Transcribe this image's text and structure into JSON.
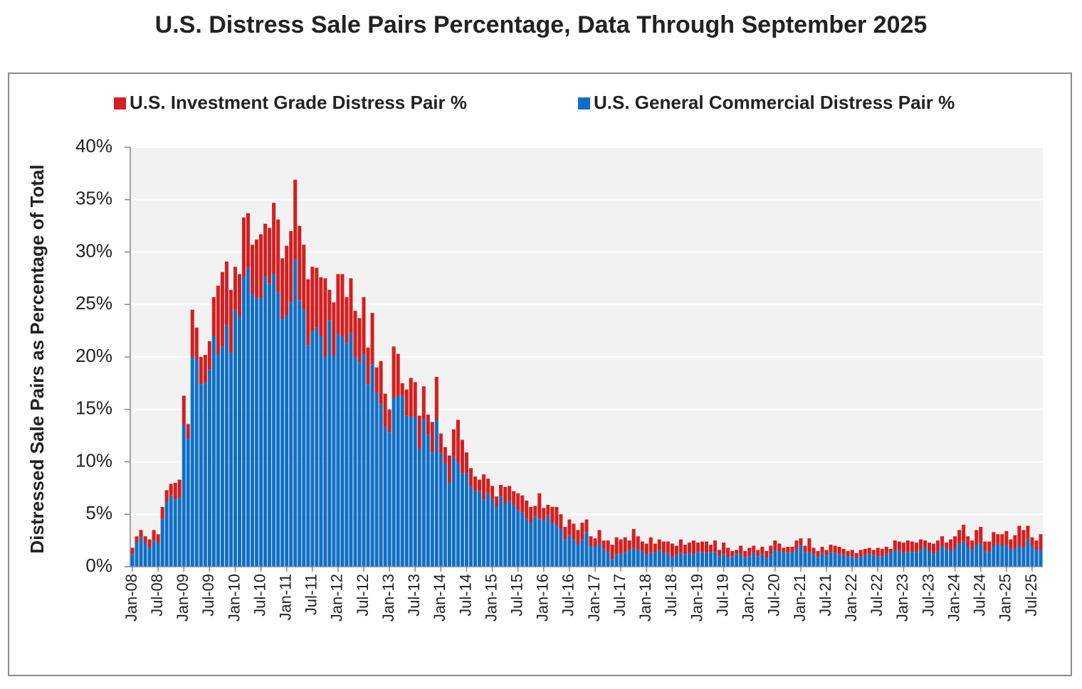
{
  "chart_data": {
    "type": "stacked-bar",
    "title": "U.S. Distress Sale Pairs Percentage, Data Through September 2025",
    "y_label": "Distressed Sale Pairs as Percentage of Total",
    "categories": [
      "Jan-08",
      null,
      null,
      null,
      null,
      null,
      "Jul-08",
      null,
      null,
      null,
      null,
      null,
      "Jan-09",
      null,
      null,
      null,
      null,
      null,
      "Jul-09",
      null,
      null,
      null,
      null,
      null,
      "Jan-10",
      null,
      null,
      null,
      null,
      null,
      "Jul-10",
      null,
      null,
      null,
      null,
      null,
      "Jan-11",
      null,
      null,
      null,
      null,
      null,
      "Jul-11",
      null,
      null,
      null,
      null,
      null,
      "Jan-12",
      null,
      null,
      null,
      null,
      null,
      "Jul-12",
      null,
      null,
      null,
      null,
      null,
      "Jan-13",
      null,
      null,
      null,
      null,
      null,
      "Jul-13",
      null,
      null,
      null,
      null,
      null,
      "Jan-14",
      null,
      null,
      null,
      null,
      null,
      "Jul-14",
      null,
      null,
      null,
      null,
      null,
      "Jan-15",
      null,
      null,
      null,
      null,
      null,
      "Jul-15",
      null,
      null,
      null,
      null,
      null,
      "Jan-16",
      null,
      null,
      null,
      null,
      null,
      "Jul-16",
      null,
      null,
      null,
      null,
      null,
      "Jan-17",
      null,
      null,
      null,
      null,
      null,
      "Jul-17",
      null,
      null,
      null,
      null,
      null,
      "Jan-18",
      null,
      null,
      null,
      null,
      null,
      "Jul-18",
      null,
      null,
      null,
      null,
      null,
      "Jan-19",
      null,
      null,
      null,
      null,
      null,
      "Jul-19",
      null,
      null,
      null,
      null,
      null,
      "Jan-20",
      null,
      null,
      null,
      null,
      null,
      "Jul-20",
      null,
      null,
      null,
      null,
      null,
      "Jan-21",
      null,
      null,
      null,
      null,
      null,
      "Jul-21",
      null,
      null,
      null,
      null,
      null,
      "Jan-22",
      null,
      null,
      null,
      null,
      null,
      "Jul-22",
      null,
      null,
      null,
      null,
      null,
      "Jan-23",
      null,
      null,
      null,
      null,
      null,
      "Jul-23",
      null,
      null,
      null,
      null,
      null,
      "Jan-24",
      null,
      null,
      null,
      null,
      null,
      "Jul-24",
      null,
      null,
      null,
      null,
      null,
      "Jan-25",
      null,
      null,
      null,
      null,
      null,
      "Jul-25",
      null,
      null
    ],
    "series": [
      {
        "name": "U.S. Investment Grade Distress Pair %",
        "color": "#d41f1f",
        "values": [
          0.6,
          0.6,
          0.7,
          0.6,
          0.8,
          1.0,
          0.8,
          1.2,
          1.1,
          1.1,
          1.6,
          1.7,
          2.8,
          1.4,
          4.5,
          3.0,
          2.6,
          2.7,
          2.7,
          3.7,
          6.5,
          7.1,
          6.1,
          6.0,
          4.1,
          4.1,
          5.6,
          5.2,
          4.7,
          5.6,
          6.1,
          5.0,
          5.3,
          6.7,
          6.9,
          5.8,
          6.6,
          6.8,
          7.6,
          7.1,
          6.2,
          6.3,
          6.2,
          5.7,
          5.6,
          7.5,
          2.9,
          5.1,
          5.7,
          5.9,
          4.4,
          5.2,
          4.4,
          4.2,
          5.4,
          3.5,
          4.9,
          2.4,
          4.1,
          3.2,
          2.2,
          4.9,
          4.0,
          1.2,
          2.5,
          3.7,
          3.3,
          3.2,
          3.1,
          1.9,
          2.9,
          4.1,
          1.9,
          1.6,
          2.6,
          2.6,
          4.1,
          3.2,
          2.0,
          1.7,
          1.4,
          1.1,
          2.4,
          1.4,
          1.3,
          1.0,
          1.1,
          1.6,
          1.4,
          1.3,
          1.6,
          1.6,
          1.7,
          1.5,
          1.0,
          2.4,
          1.2,
          1.0,
          1.5,
          1.7,
          1.4,
          1.2,
          1.5,
          1.5,
          1.4,
          1.6,
          1.2,
          0.9,
          0.8,
          1.3,
          0.8,
          1.1,
          1.4,
          1.6,
          1.4,
          1.4,
          0.9,
          1.8,
          1.3,
          0.9,
          1.1,
          1.4,
          0.9,
          1.0,
          1.1,
          1.1,
          1.3,
          0.9,
          1.3,
          0.9,
          1.0,
          1.3,
          0.9,
          1.0,
          1.1,
          0.7,
          1.1,
          0.6,
          1.1,
          0.9,
          0.5,
          0.4,
          0.8,
          0.6,
          0.8,
          0.7,
          0.6,
          0.7,
          0.7,
          0.8,
          0.9,
          0.7,
          0.4,
          0.6,
          0.5,
          0.9,
          0.6,
          0.6,
          1.3,
          0.6,
          0.6,
          0.6,
          0.5,
          0.7,
          0.7,
          0.7,
          0.6,
          0.5,
          0.6,
          0.5,
          0.6,
          0.6,
          0.6,
          0.5,
          0.8,
          0.7,
          0.7,
          0.4,
          0.9,
          0.9,
          1.0,
          1.1,
          1.0,
          0.9,
          1.0,
          0.6,
          0.8,
          1.0,
          1.0,
          0.9,
          0.6,
          1.1,
          1.1,
          1.3,
          1.6,
          0.9,
          0.9,
          1.4,
          1.6,
          0.9,
          1.0,
          1.3,
          0.9,
          1.1,
          1.3,
          0.9,
          1.3,
          1.9,
          1.7,
          1.3,
          0.8,
          0.9,
          1.5
        ]
      },
      {
        "name": "U.S. General Commercial Distress Pair %",
        "color": "#0f6fc6",
        "values": [
          1.2,
          2.3,
          2.8,
          2.3,
          1.8,
          2.5,
          2.3,
          4.5,
          6.2,
          6.8,
          6.4,
          6.6,
          13.5,
          12.2,
          20.0,
          19.8,
          17.4,
          17.5,
          18.8,
          22.0,
          20.3,
          21.0,
          23.0,
          20.4,
          24.5,
          23.8,
          27.7,
          28.5,
          26.0,
          25.6,
          25.6,
          27.7,
          27.0,
          28.0,
          26.2,
          23.6,
          24.0,
          25.2,
          29.3,
          25.4,
          24.5,
          21.1,
          22.4,
          22.8,
          22.0,
          20.0,
          23.5,
          20.1,
          22.2,
          22.0,
          21.3,
          22.3,
          20.0,
          19.5,
          20.3,
          17.4,
          19.3,
          16.6,
          15.5,
          13.3,
          12.8,
          16.1,
          16.3,
          16.3,
          14.4,
          14.3,
          14.3,
          11.2,
          14.1,
          12.6,
          10.9,
          14.0,
          10.8,
          9.8,
          8.0,
          10.5,
          9.9,
          8.9,
          8.9,
          7.7,
          7.2,
          7.2,
          6.4,
          7.0,
          6.4,
          5.7,
          6.7,
          6.0,
          6.3,
          5.9,
          5.4,
          5.2,
          4.6,
          4.2,
          4.8,
          4.6,
          4.4,
          4.9,
          4.2,
          4.0,
          3.6,
          2.6,
          3.0,
          2.6,
          2.1,
          2.6,
          3.3,
          2.0,
          1.9,
          2.2,
          1.7,
          1.4,
          0.7,
          1.2,
          1.2,
          1.4,
          1.6,
          1.8,
          1.6,
          1.5,
          1.1,
          1.4,
          1.3,
          1.6,
          1.3,
          1.3,
          0.9,
          1.1,
          1.3,
          1.2,
          1.3,
          1.2,
          1.4,
          1.4,
          1.3,
          1.4,
          1.4,
          1.0,
          1.2,
          0.9,
          1.0,
          1.2,
          1.2,
          0.9,
          1.0,
          1.3,
          1.0,
          1.2,
          0.8,
          1.2,
          1.6,
          1.5,
          1.4,
          1.3,
          1.4,
          1.6,
          2.1,
          1.4,
          1.4,
          1.2,
          0.9,
          1.3,
          1.1,
          1.4,
          1.3,
          1.2,
          1.1,
          1.0,
          1.0,
          0.8,
          1.0,
          1.1,
          1.2,
          1.1,
          1.0,
          1.0,
          1.2,
          1.3,
          1.6,
          1.5,
          1.3,
          1.4,
          1.4,
          1.4,
          1.6,
          1.9,
          1.5,
          1.2,
          1.5,
          2.0,
          1.7,
          1.5,
          1.8,
          2.2,
          2.4,
          2.0,
          1.6,
          2.1,
          2.2,
          1.5,
          1.4,
          2.0,
          2.2,
          2.0,
          2.1,
          1.7,
          1.7,
          2.0,
          1.8,
          2.6,
          2.0,
          1.6,
          1.6
        ]
      }
    ],
    "ylim": [
      0,
      40
    ],
    "yticks": [
      {
        "value": 0,
        "label": "0%"
      },
      {
        "value": 5,
        "label": "5%"
      },
      {
        "value": 10,
        "label": "10%"
      },
      {
        "value": 15,
        "label": "15%"
      },
      {
        "value": 20,
        "label": "20%"
      },
      {
        "value": 25,
        "label": "25%"
      },
      {
        "value": 30,
        "label": "30%"
      },
      {
        "value": 35,
        "label": "35%"
      },
      {
        "value": 40,
        "label": "40%"
      }
    ],
    "grid": true
  }
}
